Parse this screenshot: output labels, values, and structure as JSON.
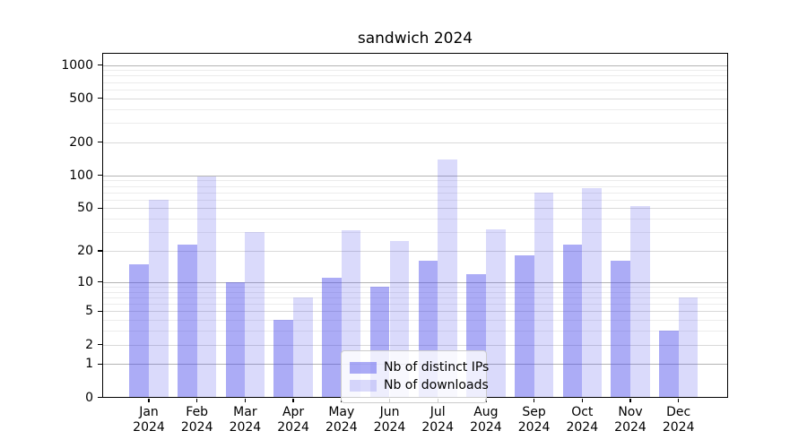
{
  "chart_data": {
    "type": "bar",
    "title": "sandwich 2024",
    "categories": [
      "Jan 2024",
      "Feb 2024",
      "Mar 2024",
      "Apr 2024",
      "May 2024",
      "Jun 2024",
      "Jul 2024",
      "Aug 2024",
      "Sep 2024",
      "Oct 2024",
      "Nov 2024",
      "Dec 2024"
    ],
    "series": [
      {
        "name": "Nb of distinct IPs",
        "color": "#acacf6",
        "fill": "rgba(70,70,235,0.45)",
        "values": [
          15,
          23,
          10,
          4,
          11,
          9,
          16,
          12,
          18,
          23,
          16,
          3
        ]
      },
      {
        "name": "Nb of downloads",
        "color": "#dadaf9",
        "fill": "rgba(70,70,235,0.20)",
        "values": [
          60,
          97,
          30,
          7,
          31,
          25,
          140,
          32,
          70,
          76,
          52,
          7
        ]
      }
    ],
    "yscale": "log1p",
    "yticks": [
      0,
      1,
      2,
      5,
      10,
      20,
      50,
      100,
      200,
      500,
      1000
    ],
    "yticks_major": [
      1,
      10,
      100,
      1000
    ],
    "ylim": [
      0,
      1264
    ],
    "xlabel": "",
    "ylabel": "",
    "grid": "both",
    "grid_colors": {
      "major": "#b4b4b4",
      "mid": "#d9d9d9",
      "minor": "#ececec"
    },
    "legend": {
      "position": "lower center",
      "labels": [
        "Nb of distinct IPs",
        "Nb of downloads"
      ]
    }
  }
}
